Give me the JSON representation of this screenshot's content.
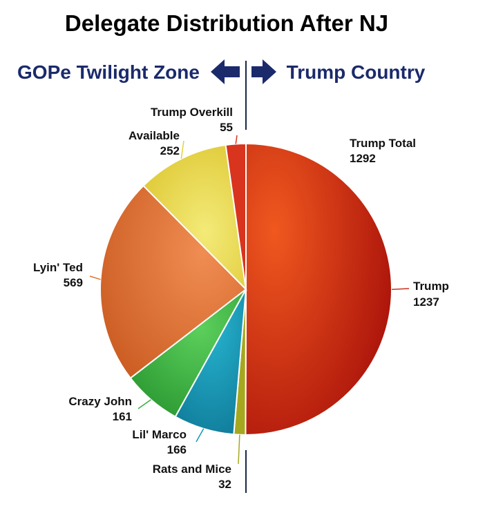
{
  "chart_data": {
    "type": "pie",
    "title": "Delegate Distribution After NJ",
    "zones": {
      "left": "GOPe Twilight Zone",
      "right": "Trump Country"
    },
    "trump_total": {
      "label": "Trump Total",
      "value": 1292
    },
    "slices": [
      {
        "label": "Trump",
        "value": 1237,
        "color": "#c8301a"
      },
      {
        "label": "Rats and Mice",
        "value": 32,
        "color": "#a5a81f"
      },
      {
        "label": "Lil' Marco",
        "value": 166,
        "color": "#1596b6"
      },
      {
        "label": "Crazy John",
        "value": 161,
        "color": "#37ae3c"
      },
      {
        "label": "Lyin' Ted",
        "value": 569,
        "color": "#e0732c"
      },
      {
        "label": "Available",
        "value": 252,
        "color": "#e2d23c"
      },
      {
        "label": "Trump Overkill",
        "value": 55,
        "color": "#d8341e"
      }
    ]
  }
}
